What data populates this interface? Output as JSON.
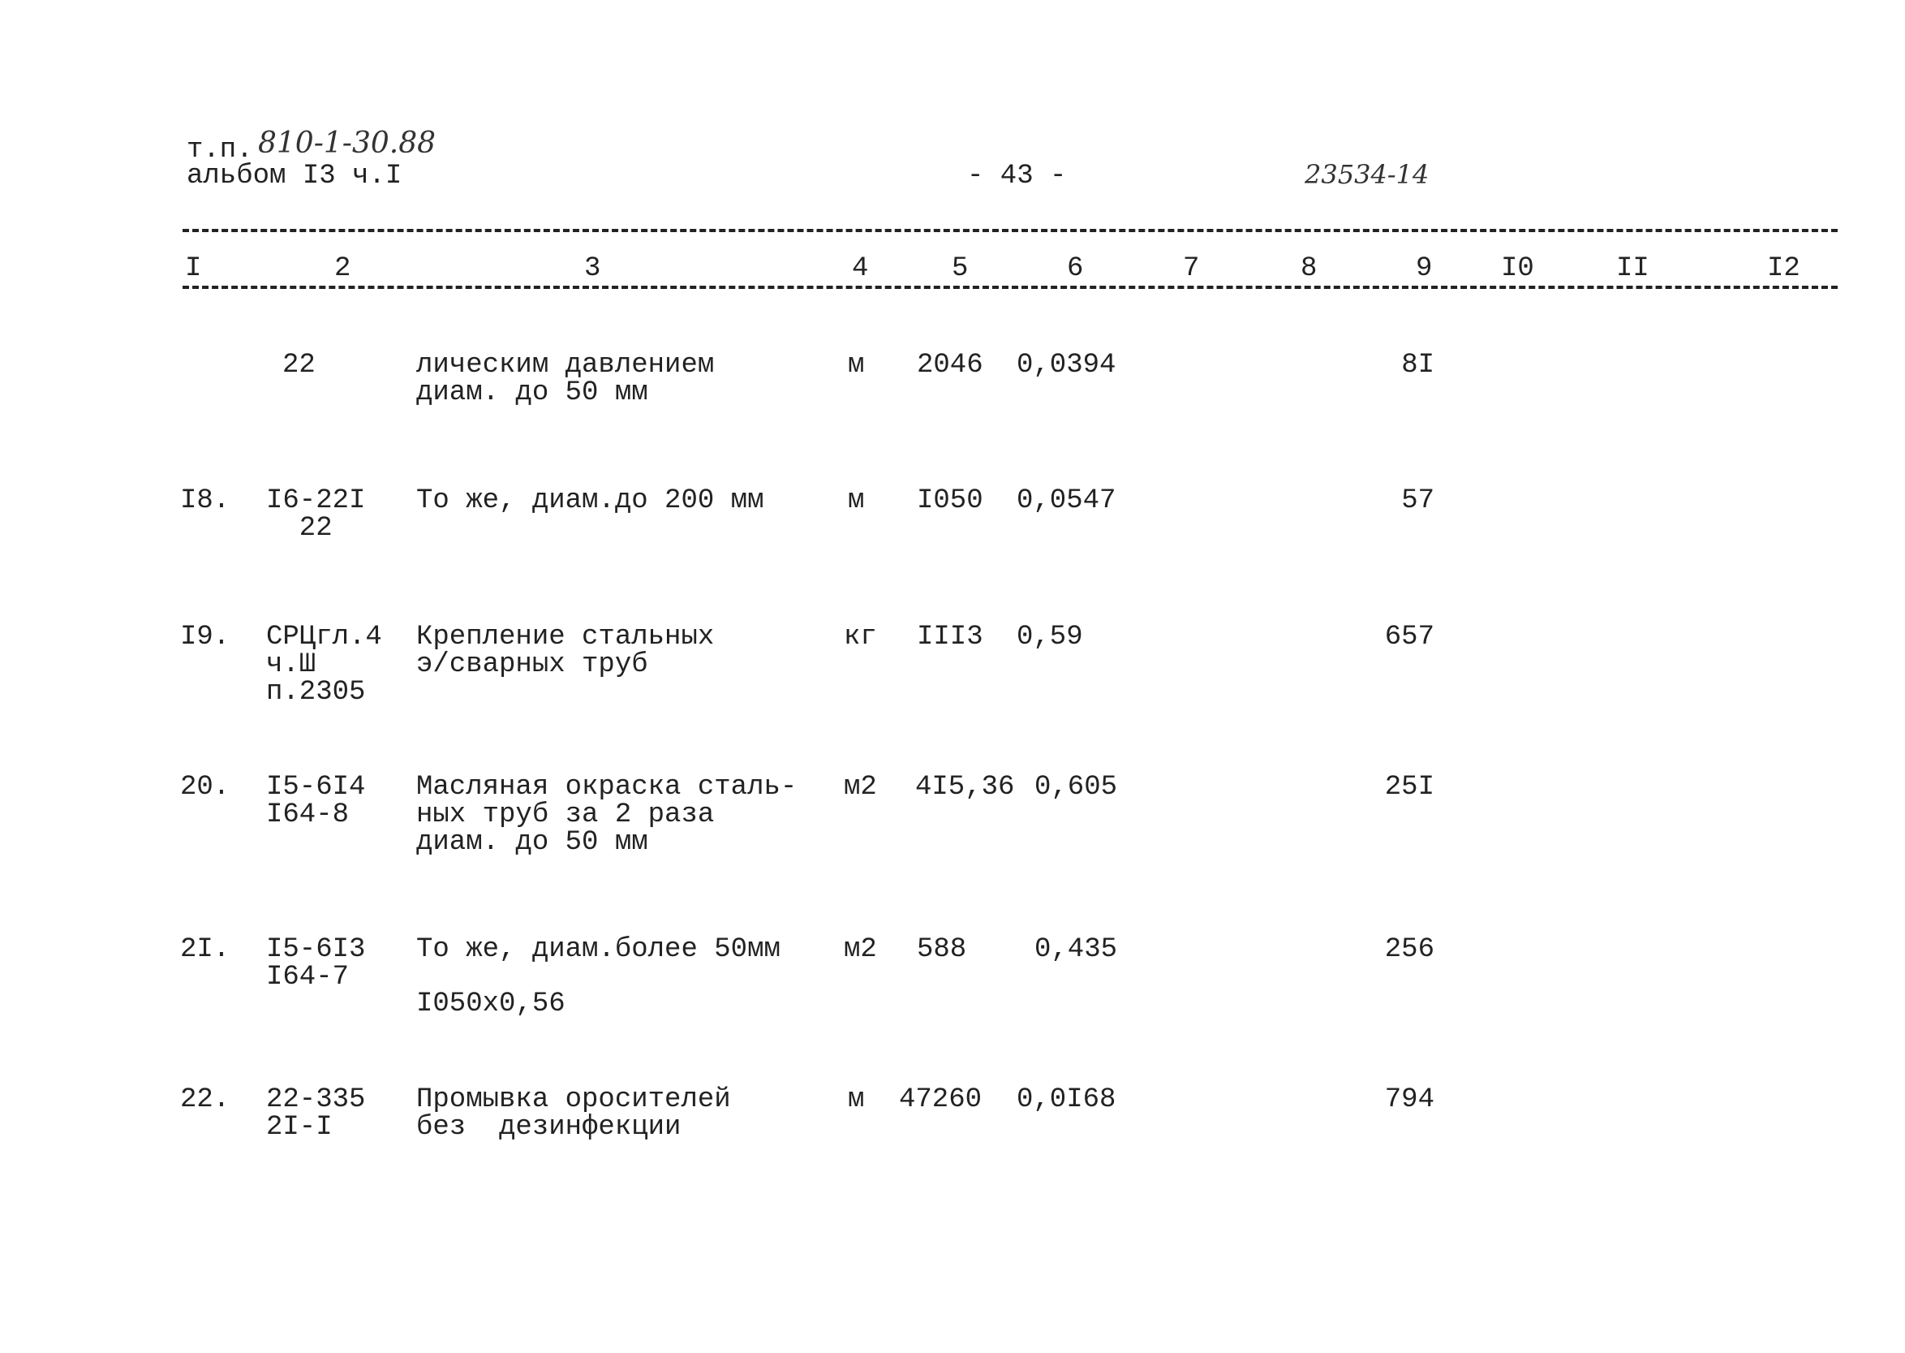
{
  "header": {
    "tp_label": "т.п.",
    "tp_number": "810-1-30.88",
    "album": "альбом I3 ч.I",
    "page": "- 43 -",
    "doc_number": "23534-14"
  },
  "columns": [
    "I",
    "2",
    "3",
    "4",
    "5",
    "6",
    "7",
    "8",
    "9",
    "I0",
    "II",
    "I2"
  ],
  "rows": [
    {
      "num": "",
      "code": [
        "22"
      ],
      "desc": [
        "лическим давлением",
        "диам. до 50 мм"
      ],
      "unit": "м",
      "qty": "2046",
      "norm": "0,0394",
      "col9": "8I"
    },
    {
      "num": "I8.",
      "code": [
        "I6-22I",
        "  22"
      ],
      "desc": [
        "То же, диам.до 200 мм"
      ],
      "unit": "м",
      "qty": "I050",
      "norm": "0,0547",
      "col9": "57"
    },
    {
      "num": "I9.",
      "code": [
        "СРЦгл.4",
        "ч.Ш",
        "п.2305"
      ],
      "desc": [
        "Крепление стальных",
        "э/сварных труб"
      ],
      "unit": "кг",
      "qty": "III3",
      "norm": "0,59",
      "col9": "657"
    },
    {
      "num": "20.",
      "code": [
        "I5-6I4",
        "I64-8"
      ],
      "desc": [
        "Масляная окраска сталь-",
        "ных труб за 2 раза",
        "диам. до 50 мм"
      ],
      "unit": "м2",
      "qty": "4I5,36",
      "norm": "0,605",
      "col9": "25I"
    },
    {
      "num": "2I.",
      "code": [
        "I5-6I3",
        "I64-7"
      ],
      "desc": [
        "То же, диам.более 50мм"
      ],
      "unit": "м2",
      "qty": "588",
      "norm": "0,435",
      "col9": "256",
      "note": "I050x0,56"
    },
    {
      "num": "22.",
      "code": [
        "22-335",
        "2I-I"
      ],
      "desc": [
        "Промывка оросителей",
        "без  дезинфекции"
      ],
      "unit": "м",
      "qty": "47260",
      "norm": "0,0I68",
      "col9": "794"
    }
  ]
}
